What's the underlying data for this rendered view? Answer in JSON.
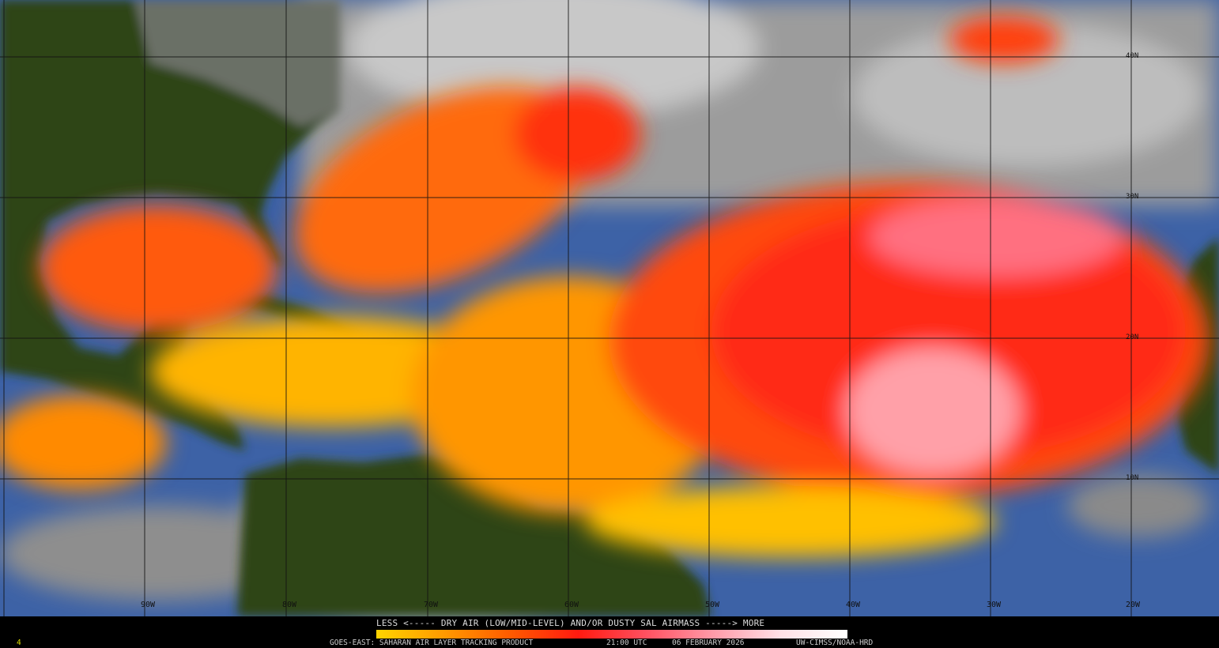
{
  "map": {
    "type": "satellite-composite",
    "colors": {
      "land": "#2e4418",
      "ocean": "#3d62a6",
      "cloud": "#9a9a9a",
      "sal_low": "#ffd400",
      "sal_mid": "#ff3010",
      "sal_high": "#ffffff"
    },
    "longitude_labels": [
      "90W",
      "80W",
      "70W",
      "60W",
      "50W",
      "40W",
      "30W",
      "20W"
    ],
    "latitude_labels": [
      "40N",
      "30N",
      "20N",
      "10N"
    ]
  },
  "legend": {
    "text": "LESS <----- DRY AIR (LOW/MID-LEVEL) AND/OR DUSTY SAL AIRMASS -----> MORE",
    "colorbar": [
      "#ffd400",
      "#ff9a00",
      "#ff5a00",
      "#ff1a10",
      "#ff5060",
      "#ff9aa8",
      "#ffe0e6",
      "#ffffff"
    ]
  },
  "footer": {
    "corner": "4",
    "product": "GOES-EAST: SAHARAN AIR LAYER TRACKING PRODUCT",
    "time": "21:00 UTC",
    "date": "06 FEBRUARY 2026",
    "credit": "UW-CIMSS/NOAA-HRD"
  }
}
